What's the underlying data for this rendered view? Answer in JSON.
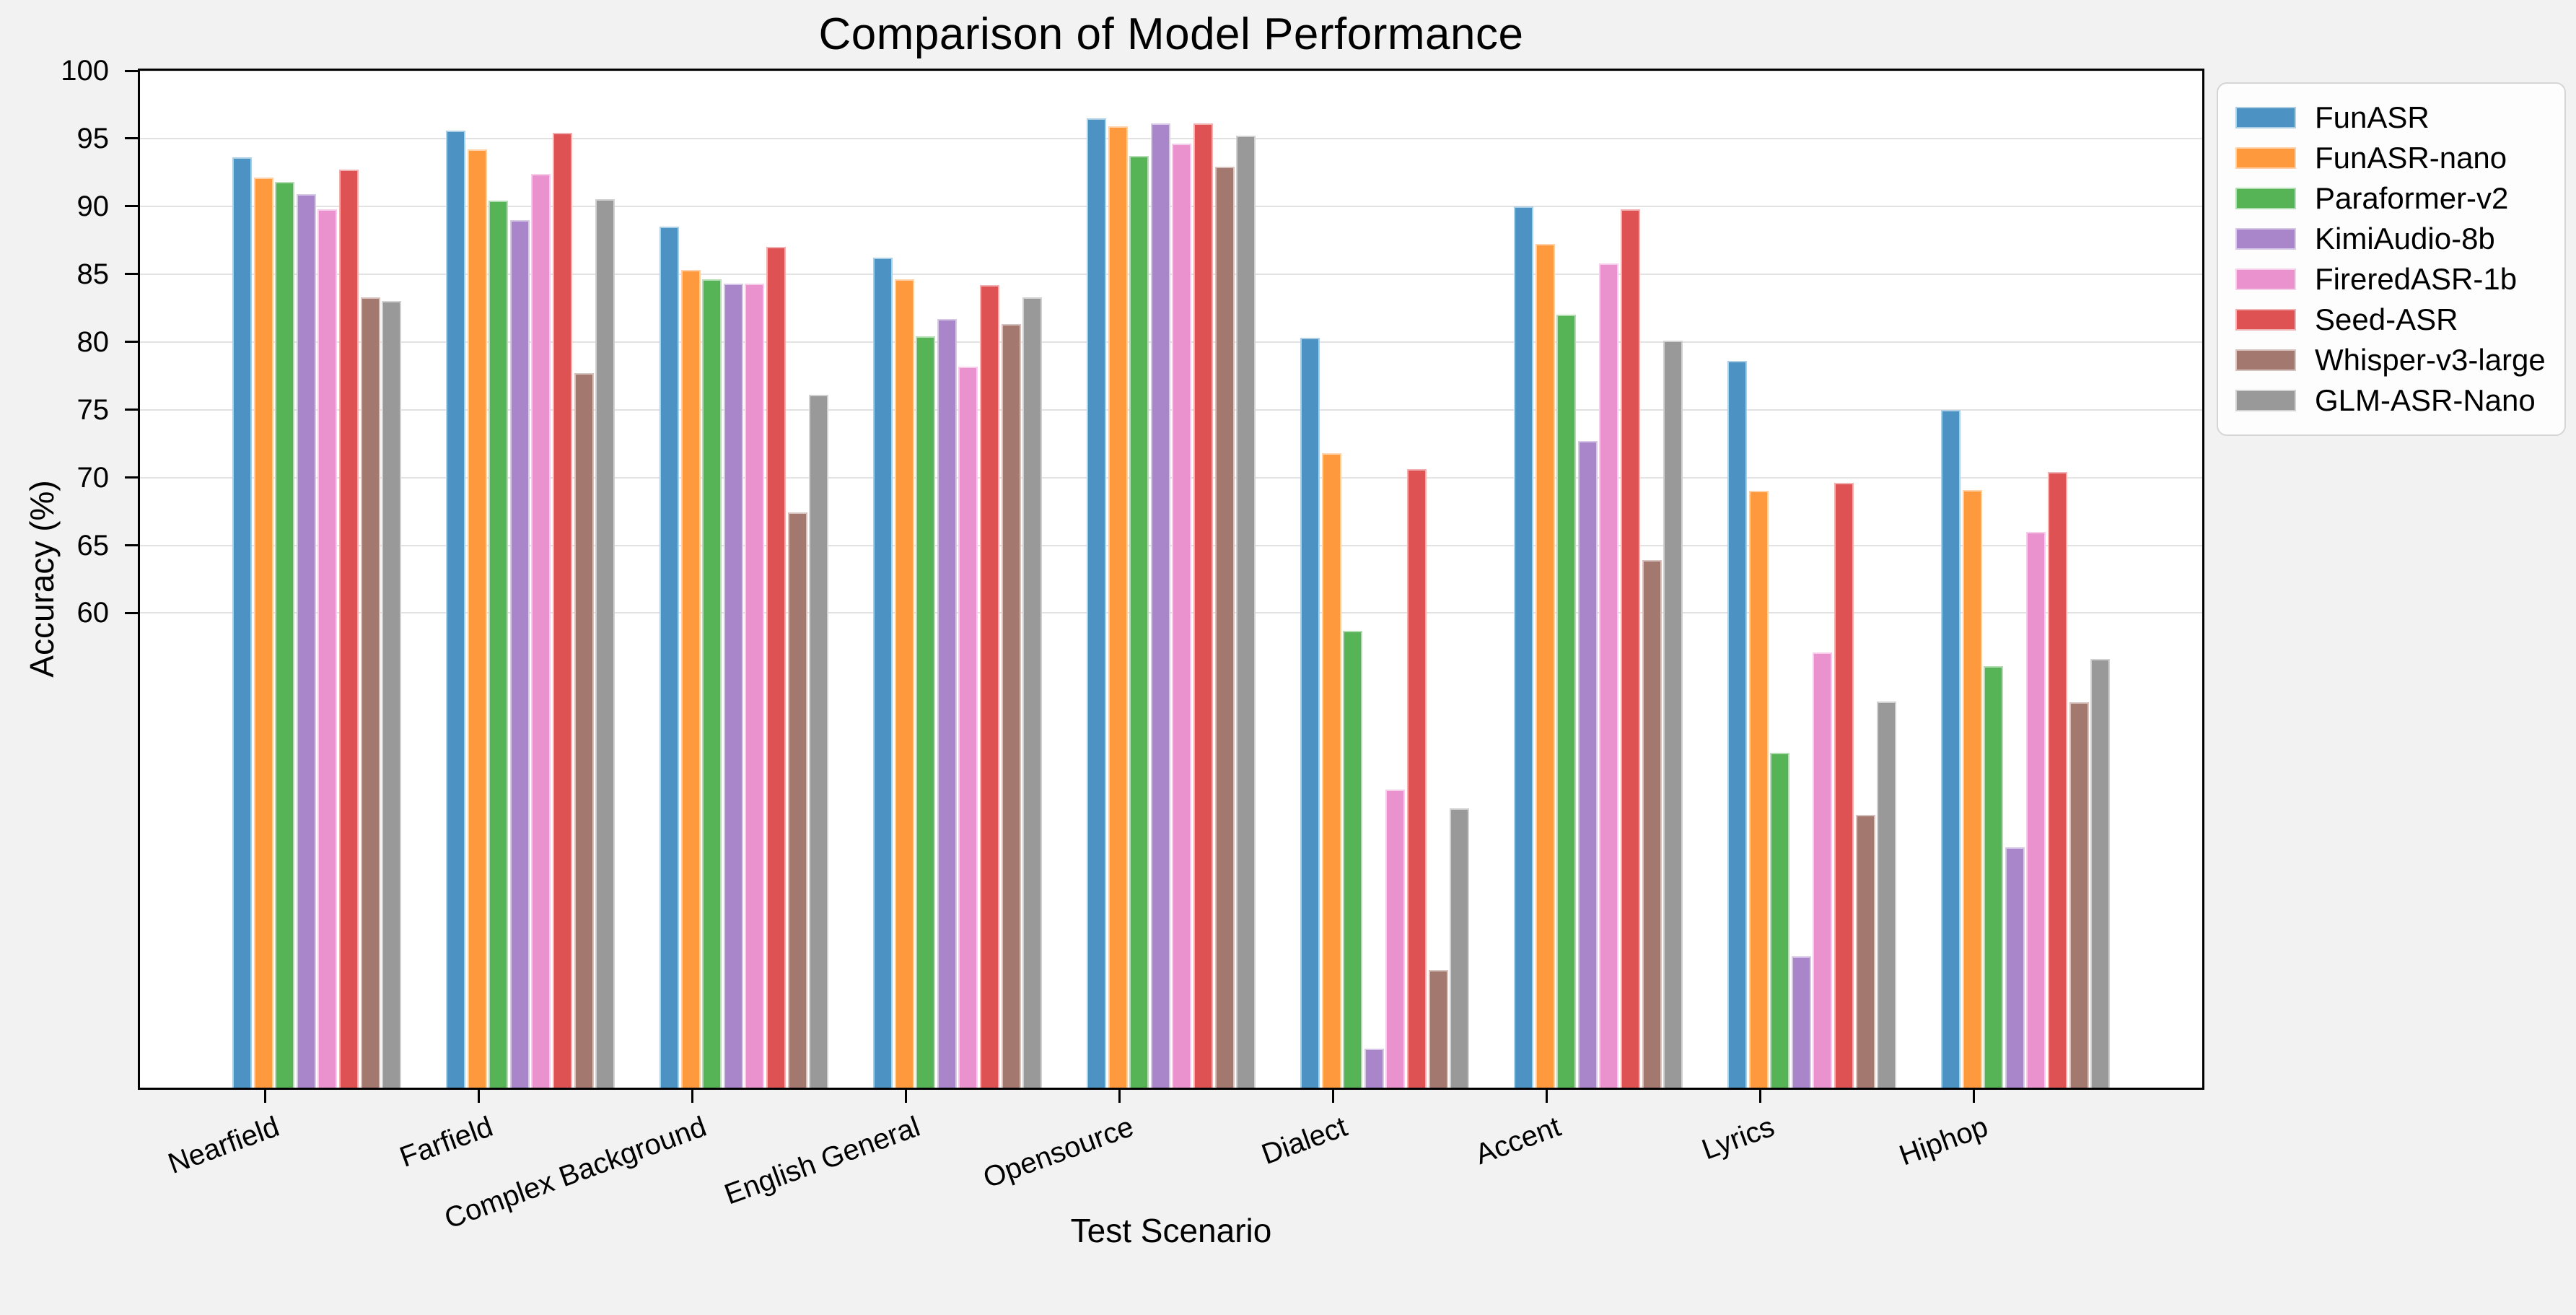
{
  "title": "Comparison of Model Performance",
  "x_axis": {
    "label": "Test Scenario",
    "categories": [
      "Nearfield",
      "Farfield",
      "Complex Background",
      "English General",
      "Opensource",
      "Dialect",
      "Accent",
      "Lyrics",
      "Hiphop"
    ]
  },
  "y_axis": {
    "label": "Accuracy (%)",
    "tick_labels": [
      "60",
      "65",
      "70",
      "75",
      "80",
      "85",
      "90",
      "95",
      "100"
    ],
    "range": [
      25,
      100
    ]
  },
  "legend": {
    "entries": [
      "FunASR",
      "FunASR-nano",
      "Paraformer-v2",
      "KimiAudio-8b",
      "FireredASR-1b",
      "Seed-ASR",
      "Whisper-v3-large",
      "GLM-ASR-Nano"
    ]
  },
  "colors": {
    "figure_background": "#f2f2f2",
    "plot_background": "#ffffff",
    "gridline": "#e2e2e2",
    "axis": "#000000",
    "legend_background": "#fdfdfd",
    "legend_border": "#d5d5d5"
  },
  "chart_data": {
    "type": "bar",
    "title": "Comparison of Model Performance",
    "xlabel": "Test Scenario",
    "ylabel": "Accuracy (%)",
    "ylim": [
      25,
      100
    ],
    "yticks": [
      60,
      65,
      70,
      75,
      80,
      85,
      90,
      95,
      100
    ],
    "grid": "horizontal",
    "legend_position": "outside-upper-right",
    "categories": [
      "Nearfield",
      "Farfield",
      "Complex Background",
      "English General",
      "Opensource",
      "Dialect",
      "Accent",
      "Lyrics",
      "Hiphop"
    ],
    "series": [
      {
        "name": "FunASR",
        "color": "#4C92C3",
        "values": [
          93.6,
          95.6,
          88.5,
          86.2,
          96.5,
          80.3,
          90.0,
          78.6,
          75.0
        ]
      },
      {
        "name": "FunASR-nano",
        "color": "#FF993E",
        "values": [
          92.1,
          94.2,
          85.3,
          84.6,
          95.9,
          71.8,
          87.2,
          69.0,
          69.1
        ]
      },
      {
        "name": "Paraformer-v2",
        "color": "#56B356",
        "values": [
          91.8,
          90.4,
          84.6,
          80.4,
          93.7,
          58.7,
          82.0,
          49.7,
          56.1
        ]
      },
      {
        "name": "KimiAudio-8b",
        "color": "#A985CA",
        "values": [
          90.9,
          89.0,
          84.3,
          81.7,
          96.1,
          27.9,
          72.7,
          34.7,
          42.7
        ]
      },
      {
        "name": "FireredASR-1b",
        "color": "#E992CE",
        "values": [
          89.8,
          92.4,
          84.3,
          78.2,
          94.6,
          47.0,
          85.8,
          57.1,
          66.0
        ]
      },
      {
        "name": "Seed-ASR",
        "color": "#DE5253",
        "values": [
          92.7,
          95.4,
          87.0,
          84.2,
          96.1,
          70.6,
          89.8,
          69.6,
          70.4
        ]
      },
      {
        "name": "Whisper-v3-large",
        "color": "#A3786F",
        "values": [
          83.3,
          77.7,
          67.4,
          81.3,
          92.9,
          33.7,
          63.9,
          45.1,
          53.4
        ]
      },
      {
        "name": "GLM-ASR-Nano",
        "color": "#999999",
        "values": [
          83.0,
          90.5,
          76.1,
          83.3,
          95.2,
          45.6,
          80.1,
          53.5,
          56.6
        ]
      }
    ]
  }
}
